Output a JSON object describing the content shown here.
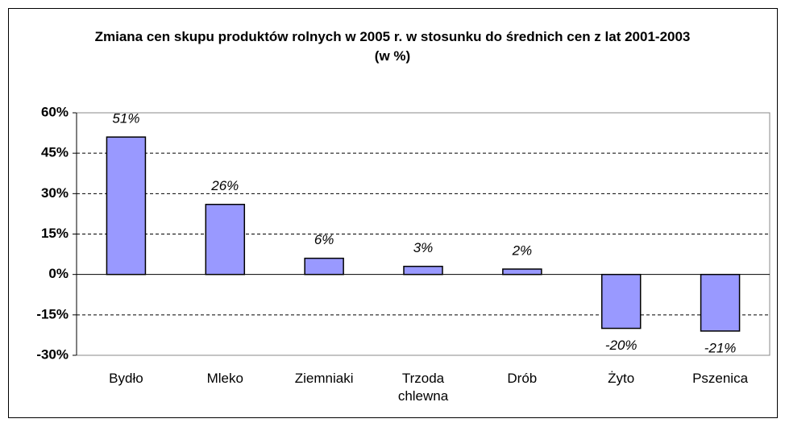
{
  "chart_data": {
    "type": "bar",
    "title": "Zmiana cen skupu produktów rolnych w 2005 r. w stosunku do średnich cen z lat 2001-2003 (w %)",
    "categories": [
      "Bydło",
      "Mleko",
      "Ziemniaki",
      "Trzoda chlewna",
      "Drób",
      "Żyto",
      "Pszenica"
    ],
    "values": [
      51,
      26,
      6,
      3,
      2,
      -20,
      -21
    ],
    "value_labels": [
      "51%",
      "26%",
      "6%",
      "3%",
      "2%",
      "-20%",
      "-21%"
    ],
    "color": "#9999ff",
    "ylim": [
      -30,
      60
    ],
    "yticks": [
      {
        "value": -30,
        "label": "-30%"
      },
      {
        "value": -15,
        "label": "-15%"
      },
      {
        "value": 0,
        "label": "0%"
      },
      {
        "value": 15,
        "label": "15%"
      },
      {
        "value": 30,
        "label": "30%"
      },
      {
        "value": 45,
        "label": "45%"
      },
      {
        "value": 60,
        "label": "60%"
      }
    ],
    "grid": true
  }
}
